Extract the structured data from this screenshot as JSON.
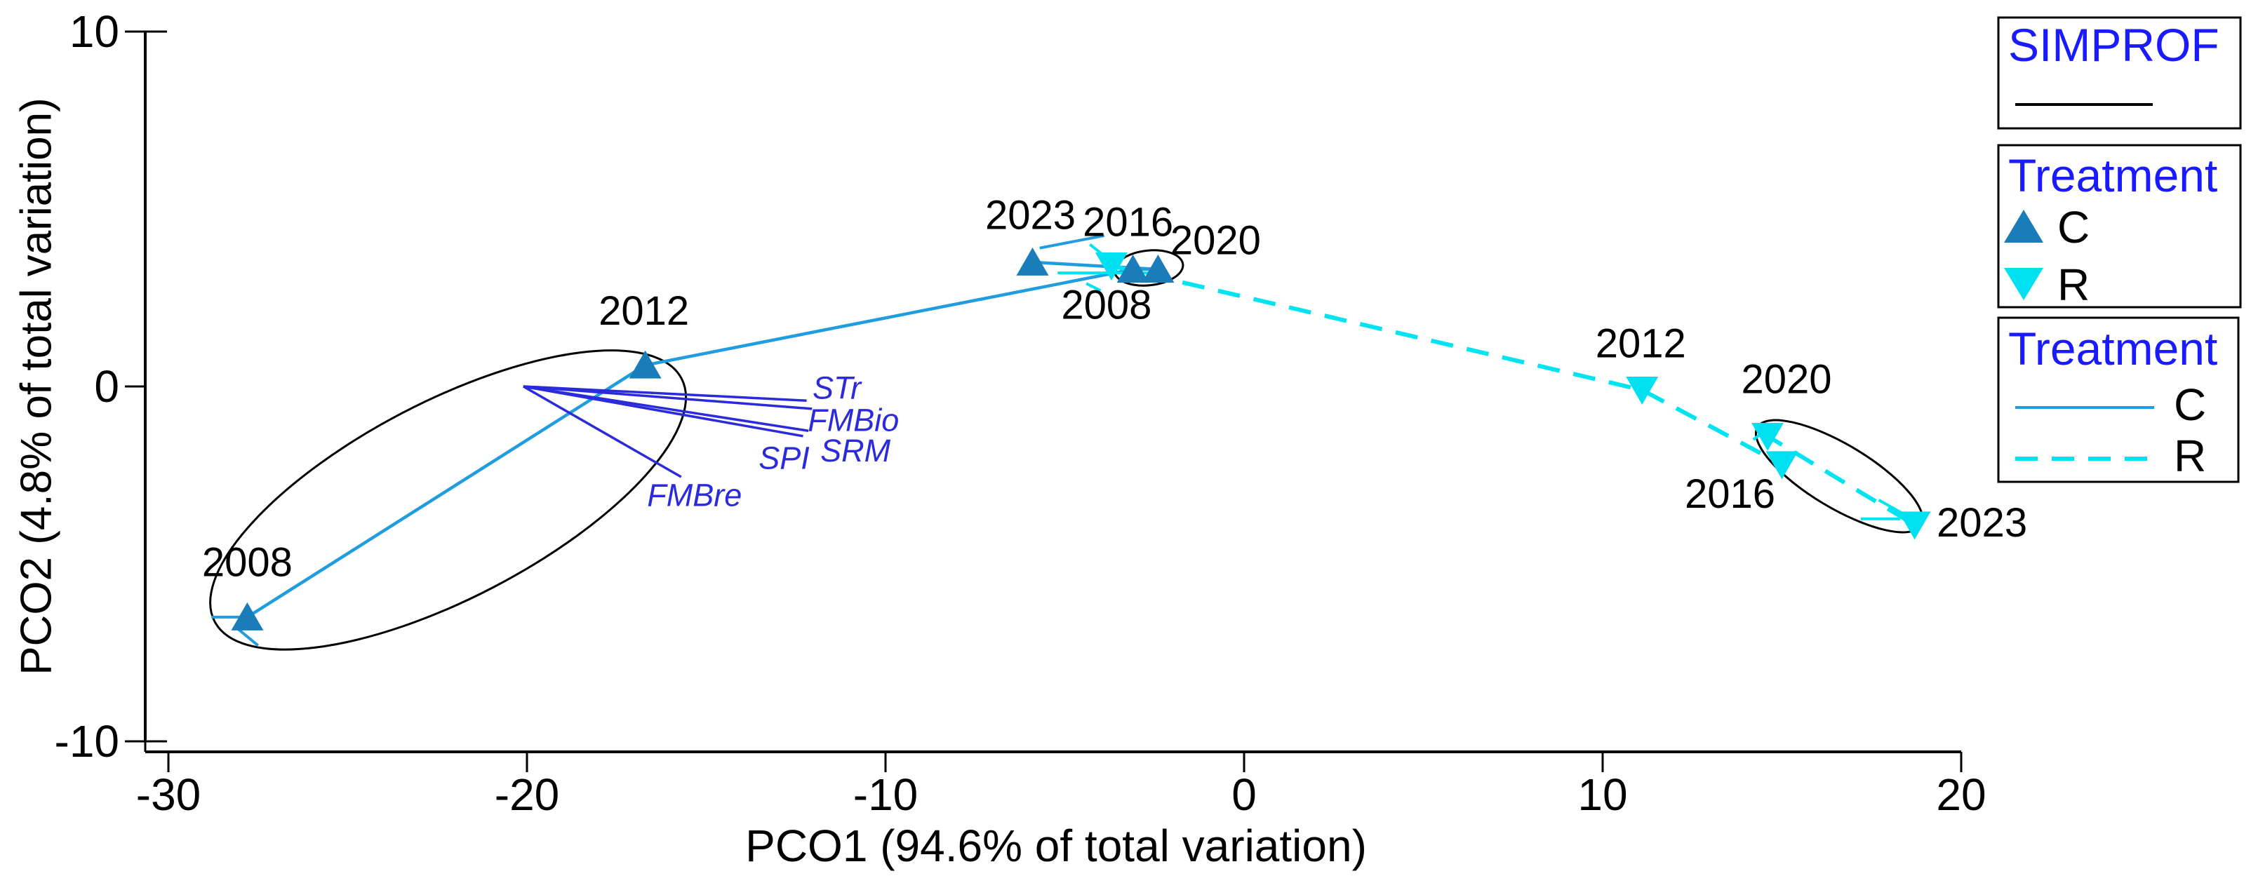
{
  "figure": {
    "x_axis": {
      "title": "PCO1 (94.6% of total variation)",
      "tick_labels": [
        "-30",
        "-20",
        "-10",
        "0",
        "10",
        "20"
      ]
    },
    "y_axis": {
      "title": "PCO2 (4.8% of total variation)",
      "tick_labels": [
        "10",
        "0",
        "-10"
      ]
    }
  },
  "chart_data": {
    "type": "scatter",
    "title": "",
    "xlabel": "PCO1 (94.6% of total variation)",
    "ylabel": "PCO2 (4.8% of total variation)",
    "xlim": [
      -30,
      20
    ],
    "ylim": [
      -10,
      10
    ],
    "x_ticks": [
      -30,
      -20,
      -10,
      0,
      10,
      20
    ],
    "y_ticks": [
      10,
      0,
      -10
    ],
    "grid": false,
    "legend_position": "outside-top-right",
    "series": [
      {
        "name": "C",
        "marker": "triangle-up",
        "marker_color": "#1a7db9",
        "line_color": "#1f9ddf",
        "line_style": "solid",
        "points": [
          {
            "year": "2008",
            "x": -27.8,
            "y": -6.5,
            "label_dx": 0,
            "label_dy": -78
          },
          {
            "year": "2012",
            "x": -16.7,
            "y": 0.6,
            "label_dx": -2,
            "label_dy": -77
          },
          {
            "year": "2016",
            "x": -3.1,
            "y": 3.3,
            "label_dx": -7,
            "label_dy": -67
          },
          {
            "year": "2020",
            "x": -2.4,
            "y": 3.3,
            "label_dx": 82,
            "label_dy": -41
          },
          {
            "year": "2023",
            "x": -5.9,
            "y": 3.5,
            "label_dx": -3,
            "label_dy": -67
          }
        ]
      },
      {
        "name": "R",
        "marker": "triangle-down",
        "marker_color": "#00e0f0",
        "line_color": "#00e4f2",
        "line_style": "dashed",
        "points": [
          {
            "year": "2008",
            "x": -3.7,
            "y": 3.4,
            "label_dx": -7,
            "label_dy": 56
          },
          {
            "year": "2012",
            "x": 11.1,
            "y": -0.1,
            "label_dx": -2,
            "label_dy": -66
          },
          {
            "year": "2016",
            "x": 15.0,
            "y": -2.2,
            "label_dx": -74,
            "label_dy": 42
          },
          {
            "year": "2020",
            "x": 14.6,
            "y": -1.4,
            "label_dx": 27,
            "label_dy": -81
          },
          {
            "year": "2023",
            "x": 18.7,
            "y": -3.9,
            "label_dx": 96,
            "label_dy": -3
          }
        ]
      }
    ],
    "vectors": {
      "color": "#2b2bdb",
      "origin": {
        "x": -20.1,
        "y": 0.0
      },
      "items": [
        {
          "label": "STr",
          "x": -12.2,
          "y": -0.4,
          "label_dx": 43,
          "label_dy": -18
        },
        {
          "label": "FMBio",
          "x": -12.05,
          "y": -0.63,
          "label_dx": 59,
          "label_dy": 16
        },
        {
          "label": "SRM",
          "x": -12.15,
          "y": -1.25,
          "label_dx": 67,
          "label_dy": 28
        },
        {
          "label": "SPI",
          "x": -12.3,
          "y": -1.4,
          "label_dx": -27,
          "label_dy": 31
        },
        {
          "label": "FMBre",
          "x": -15.7,
          "y": -2.55,
          "label_dx": 19,
          "label_dy": 26
        }
      ]
    },
    "simprof_ellipses": [
      {
        "group": "C 2008-2012",
        "x": -22.2,
        "y": -3.2,
        "rx": 7.34,
        "ry": 2.77,
        "rot": -27.5
      },
      {
        "group": "C 2016-2020",
        "x": -2.66,
        "y": 3.34,
        "rx": 0.96,
        "ry": 0.49,
        "rot": -6
      },
      {
        "group": "R 2016-2023",
        "x": 16.6,
        "y": -2.53,
        "rx": 2.66,
        "ry": 0.89,
        "rot": 31
      }
    ],
    "whiskers": [
      {
        "series": "C",
        "x1": -28.8,
        "y1": -6.5,
        "x2": -28.0,
        "y2": -6.5
      },
      {
        "series": "C",
        "x1": -28.1,
        "y1": -6.8,
        "x2": -27.5,
        "y2": -7.3
      },
      {
        "series": "C",
        "x1": -5.7,
        "y1": 3.9,
        "x2": -3.9,
        "y2": 4.25
      },
      {
        "series": "R",
        "x1": -5.2,
        "y1": 3.2,
        "x2": -2.3,
        "y2": 3.2
      },
      {
        "series": "R",
        "x1": -4.3,
        "y1": 4.0,
        "x2": -3.8,
        "y2": 3.6
      },
      {
        "series": "R",
        "x1": -4.4,
        "y1": 2.9,
        "x2": -4.0,
        "y2": 2.7
      },
      {
        "series": "R",
        "x1": 17.2,
        "y1": -3.73,
        "x2": 18.3,
        "y2": -3.73
      },
      {
        "series": "R",
        "x1": 17.7,
        "y1": -3.2,
        "x2": 18.4,
        "y2": -3.6
      },
      {
        "series": "R",
        "x1": 14.2,
        "y1": -1.5,
        "x2": 14.6,
        "y2": -1.2
      }
    ]
  },
  "legend": {
    "simprof": {
      "title": "SIMPROF",
      "swatch": "black-line",
      "swatch_color": "#000000"
    },
    "treatment_markers": {
      "title": "Treatment",
      "items": [
        {
          "label": "C",
          "marker": "triangle-up",
          "color": "#1a7db9"
        },
        {
          "label": "R",
          "marker": "triangle-down",
          "color": "#00e0f0"
        }
      ]
    },
    "treatment_lines": {
      "title": "Treatment",
      "items": [
        {
          "label": "C",
          "line": "solid",
          "color": "#1f9ddf"
        },
        {
          "label": "R",
          "line": "dashed",
          "color": "#00e4f2"
        }
      ]
    }
  }
}
